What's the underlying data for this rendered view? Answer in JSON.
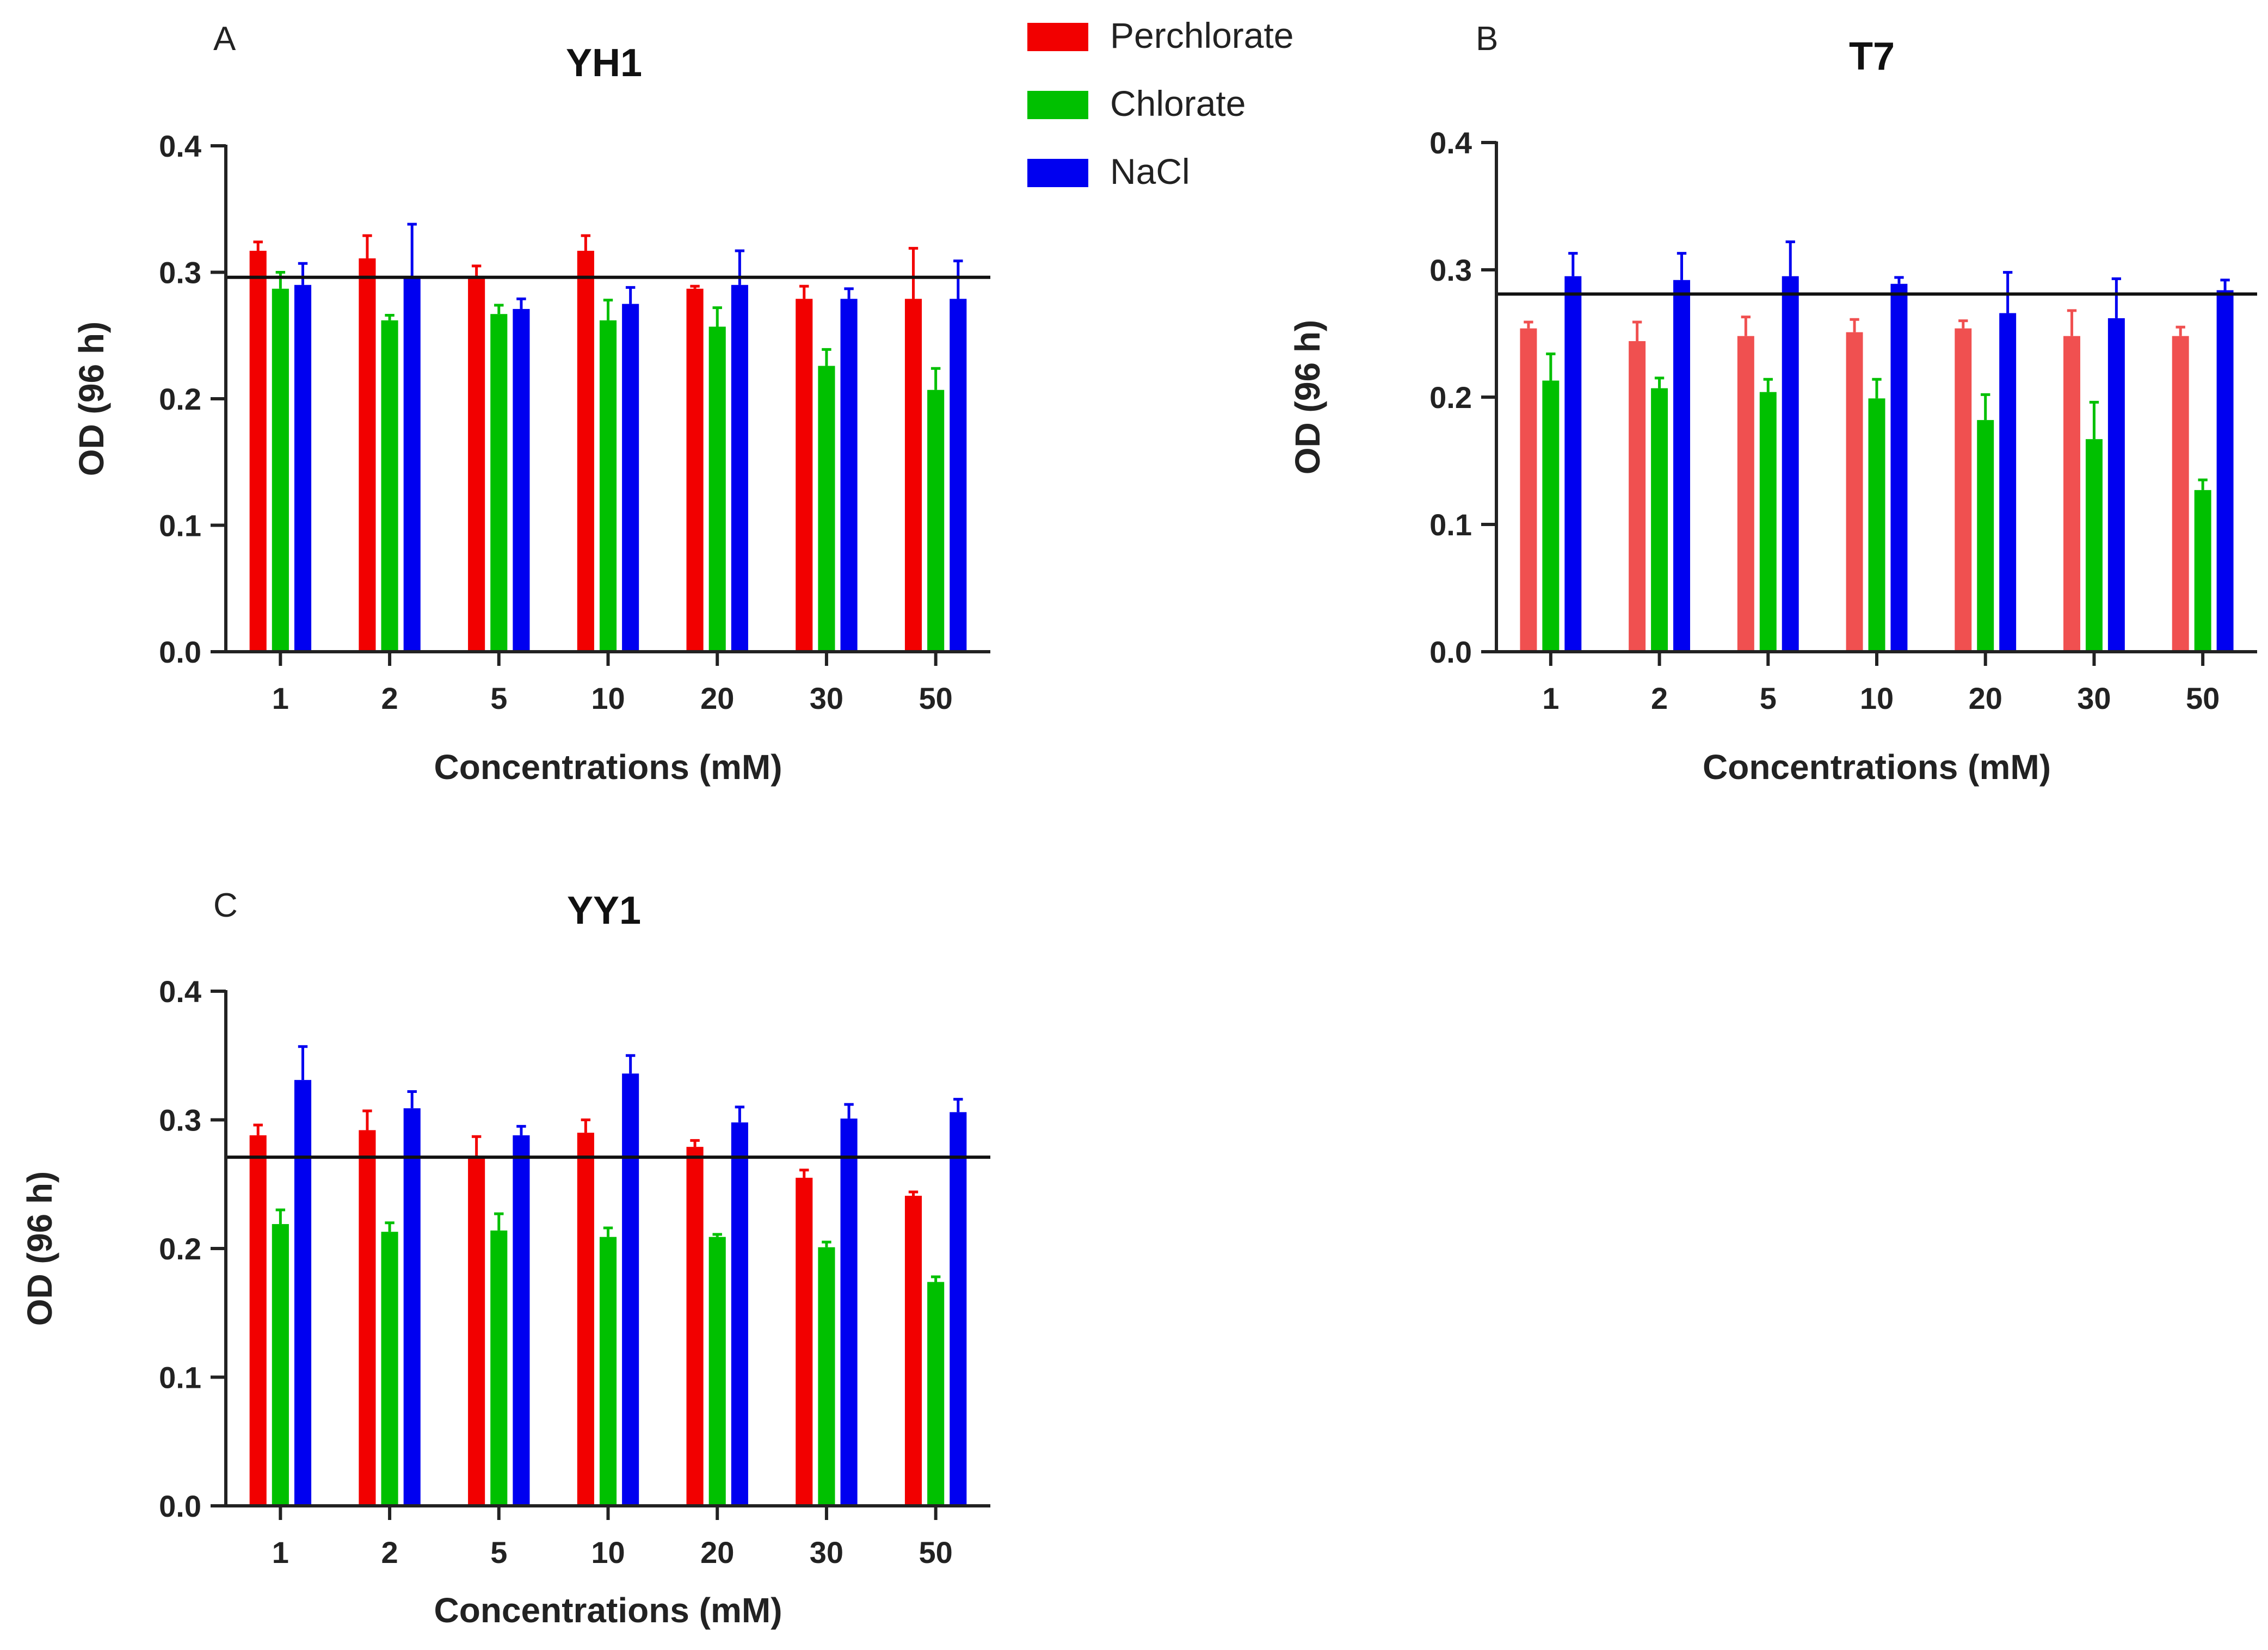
{
  "legend": [
    {
      "name": "Perchlorate",
      "color": "#f20000"
    },
    {
      "name": "Chlorate",
      "color": "#00c000"
    },
    {
      "name": "NaCl",
      "color": "#0000f0"
    }
  ],
  "chart_data": [
    {
      "type": "bar",
      "panel": "A",
      "title": "YH1",
      "xlabel": "Concentrations (mM)",
      "ylabel": "OD (96 h)",
      "ylim": [
        0,
        0.4
      ],
      "yticks": [
        "0.0",
        "0.1",
        "0.2",
        "0.3",
        "0.4"
      ],
      "categories": [
        "1",
        "2",
        "5",
        "10",
        "20",
        "30",
        "50"
      ],
      "reference_line": 0.296,
      "series": [
        {
          "name": "Perchlorate",
          "color": "#f20000",
          "values": [
            0.317,
            0.311,
            0.297,
            0.317,
            0.287,
            0.279,
            0.279
          ],
          "errors": [
            0.007,
            0.018,
            0.008,
            0.012,
            0.002,
            0.01,
            0.04
          ]
        },
        {
          "name": "Chlorate",
          "color": "#00c000",
          "values": [
            0.287,
            0.262,
            0.267,
            0.262,
            0.257,
            0.226,
            0.207
          ],
          "errors": [
            0.013,
            0.004,
            0.007,
            0.016,
            0.015,
            0.013,
            0.017
          ]
        },
        {
          "name": "NaCl",
          "color": "#0000f0",
          "values": [
            0.29,
            0.297,
            0.271,
            0.275,
            0.29,
            0.279,
            0.279
          ],
          "errors": [
            0.017,
            0.041,
            0.008,
            0.013,
            0.027,
            0.008,
            0.03
          ]
        }
      ]
    },
    {
      "type": "bar",
      "panel": "B",
      "title": "T7",
      "xlabel": "Concentrations (mM)",
      "ylabel": "OD (96 h)",
      "ylim": [
        0,
        0.4
      ],
      "yticks": [
        "0.0",
        "0.1",
        "0.2",
        "0.3",
        "0.4"
      ],
      "categories": [
        "1",
        "2",
        "5",
        "10",
        "20",
        "30",
        "50"
      ],
      "reference_line": 0.281,
      "series": [
        {
          "name": "Perchlorate",
          "color": "#f05050",
          "values": [
            0.254,
            0.244,
            0.248,
            0.251,
            0.254,
            0.248,
            0.248
          ],
          "errors": [
            0.005,
            0.015,
            0.015,
            0.01,
            0.006,
            0.02,
            0.007
          ]
        },
        {
          "name": "Chlorate",
          "color": "#00c000",
          "values": [
            0.213,
            0.207,
            0.204,
            0.199,
            0.182,
            0.167,
            0.127
          ],
          "errors": [
            0.021,
            0.008,
            0.01,
            0.015,
            0.02,
            0.029,
            0.008
          ]
        },
        {
          "name": "NaCl",
          "color": "#0000f0",
          "values": [
            0.295,
            0.292,
            0.295,
            0.289,
            0.266,
            0.262,
            0.284
          ],
          "errors": [
            0.018,
            0.021,
            0.027,
            0.005,
            0.032,
            0.031,
            0.008
          ]
        }
      ]
    },
    {
      "type": "bar",
      "panel": "C",
      "title": "YY1",
      "xlabel": "Concentrations (mM)",
      "ylabel": "OD (96 h)",
      "ylim": [
        0,
        0.4
      ],
      "yticks": [
        "0.0",
        "0.1",
        "0.2",
        "0.3",
        "0.4"
      ],
      "categories": [
        "1",
        "2",
        "5",
        "10",
        "20",
        "30",
        "50"
      ],
      "reference_line": 0.271,
      "series": [
        {
          "name": "Perchlorate",
          "color": "#f20000",
          "values": [
            0.288,
            0.292,
            0.271,
            0.29,
            0.279,
            0.255,
            0.241
          ],
          "errors": [
            0.008,
            0.015,
            0.016,
            0.01,
            0.005,
            0.006,
            0.003
          ]
        },
        {
          "name": "Chlorate",
          "color": "#00c000",
          "values": [
            0.219,
            0.213,
            0.214,
            0.209,
            0.209,
            0.201,
            0.174
          ],
          "errors": [
            0.011,
            0.007,
            0.013,
            0.007,
            0.002,
            0.004,
            0.004
          ]
        },
        {
          "name": "NaCl",
          "color": "#0000f0",
          "values": [
            0.331,
            0.309,
            0.288,
            0.336,
            0.298,
            0.301,
            0.306
          ],
          "errors": [
            0.026,
            0.013,
            0.007,
            0.014,
            0.012,
            0.011,
            0.01
          ]
        }
      ]
    }
  ]
}
